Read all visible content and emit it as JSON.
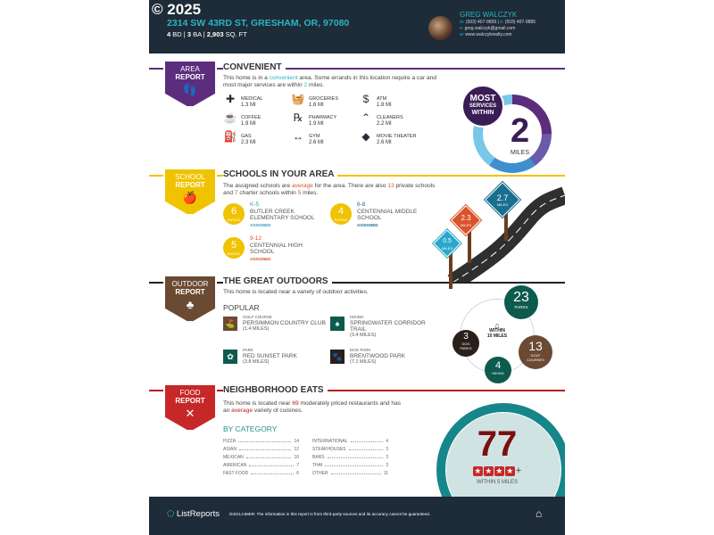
{
  "header": {
    "copyright": "© 2025",
    "address": "2314 SW 43RD ST, GRESHAM, OR, 97080",
    "beds": "4",
    "beds_label": "BD",
    "baths": "3",
    "baths_label": "BA",
    "sqft": "2,903",
    "sqft_label": "SQ. FT",
    "agent": {
      "name": "GREG WALCZYK",
      "mobile_label": "m:",
      "mobile": "(503) 407-9859",
      "office_label": "o:",
      "office": "(503) 407-9885",
      "email_label": "e:",
      "email": "greg.walczyk@gmail.com",
      "web_label": "w:",
      "web": "www.walczykrealty.com"
    }
  },
  "area": {
    "badge_line1": "AREA",
    "badge_line2": "REPORT",
    "title": "CONVENIENT",
    "color": "#5b2d7c",
    "text_pre": "This home is in a ",
    "text_hl": "convenient",
    "text_mid": " area. Some errands in this location require a car and most major services are within ",
    "text_num": "2",
    "text_post": " miles.",
    "services": [
      {
        "label": "MEDICAL",
        "dist": "1.3 MI",
        "icon": "cross-icon"
      },
      {
        "label": "GROCERIES",
        "dist": "1.6 MI",
        "icon": "basket-icon"
      },
      {
        "label": "ATM",
        "dist": "1.8 MI",
        "icon": "dollar-icon"
      },
      {
        "label": "COFFEE",
        "dist": "1.9 MI",
        "icon": "coffee-icon"
      },
      {
        "label": "PHARMACY",
        "dist": "1.9 MI",
        "icon": "pharmacy-icon"
      },
      {
        "label": "CLEANERS",
        "dist": "2.2 MI",
        "icon": "hanger-icon"
      },
      {
        "label": "GAS",
        "dist": "2.3 MI",
        "icon": "gas-icon"
      },
      {
        "label": "GYM",
        "dist": "2.6 MI",
        "icon": "dumbbell-icon"
      },
      {
        "label": "MOVIE THEATER",
        "dist": "2.6 MI",
        "icon": "ticket-icon"
      }
    ],
    "circle": {
      "line1": "MOST",
      "line2": "SERVICES",
      "line3": "WITHIN",
      "value": "2",
      "unit": "MILES"
    }
  },
  "school": {
    "badge_line1": "SCHOOL",
    "badge_line2": "REPORT",
    "title": "SCHOOLS IN YOUR AREA",
    "color": "#f0c300",
    "text_a": "The assigned schools are ",
    "text_hl": "average",
    "text_b": " for the area. There are also ",
    "private": "13",
    "text_c": " private schools and ",
    "charter": "7",
    "text_d": " charter schools within ",
    "miles": "5",
    "text_e": " miles.",
    "rating_label": "RATING",
    "schools": [
      {
        "rating": "6",
        "level": "K-5",
        "name": "BUTLER CREEK ELEMENTARY SCHOOL",
        "status": "ASSIGNED",
        "color": "#2a9fb5"
      },
      {
        "rating": "4",
        "level": "6-8",
        "name": "CENTENNIAL MIDDLE SCHOOL",
        "status": "ASSIGNED",
        "color": "#1a6e8e"
      },
      {
        "rating": "5",
        "level": "9-12",
        "name": "CENTENNIAL HIGH SCHOOL",
        "status": "ASSIGNED",
        "color": "#d9532c"
      }
    ],
    "signs": [
      {
        "value": "0.5",
        "unit": "MILES",
        "color": "#2aa7c9"
      },
      {
        "value": "2.3",
        "unit": "MILES",
        "color": "#d9532c"
      },
      {
        "value": "2.7",
        "unit": "MILES",
        "color": "#1a6e8e"
      }
    ]
  },
  "outdoor": {
    "badge_line1": "OUTDOOR",
    "badge_line2": "REPORT",
    "title": "THE GREAT OUTDOORS",
    "color": "#6b4a33",
    "text": "This home is located near a variety of outdoor activities.",
    "popular": "POPULAR",
    "items": [
      {
        "kind": "GOLF COURSE",
        "name": "PERSIMMON COUNTRY CLUB",
        "dist": "(1.4 MILES)",
        "color": "#6b4a33"
      },
      {
        "kind": "HIKING",
        "name": "SPRINGWATER CORRIDOR TRAIL",
        "dist": "(3.4 MILES)",
        "color": "#0d5a4f"
      },
      {
        "kind": "PARK",
        "name": "RED SUNSET PARK",
        "dist": "(3.8 MILES)",
        "color": "#0d5a4f"
      },
      {
        "kind": "DOG PARK",
        "name": "BRENTWOOD PARK",
        "dist": "(7.1 MILES)",
        "color": "#2a1f1a"
      }
    ],
    "center1": "WITHIN",
    "center2": "10 MILES",
    "counts": {
      "parks": "23",
      "parks_label": "PARKS",
      "golf": "13",
      "golf_label": "GOLF COURSES",
      "hiking": "4",
      "hiking_label": "HIKING",
      "dog": "3",
      "dog_label": "DOG PARKS"
    }
  },
  "food": {
    "badge_line1": "FOOD",
    "badge_line2": "REPORT",
    "title": "NEIGHBORHOOD EATS",
    "color": "#b71c1c",
    "text_a": "This home is located near ",
    "count": "69",
    "text_b": " moderately priced restaurants and has an ",
    "variety": "average",
    "text_c": " variety of cuisines.",
    "by_category": "BY CATEGORY",
    "categories": [
      {
        "name": "PIZZA",
        "n": "14"
      },
      {
        "name": "ASIAN",
        "n": "12"
      },
      {
        "name": "MEXICAN",
        "n": "10"
      },
      {
        "name": "AMERICAN",
        "n": "7"
      },
      {
        "name": "FAST FOOD",
        "n": "6"
      },
      {
        "name": "INTERNATIONAL",
        "n": "4"
      },
      {
        "name": "STEAKHOUSES",
        "n": "3"
      },
      {
        "name": "BARS",
        "n": "3"
      },
      {
        "name": "THAI",
        "n": "3"
      },
      {
        "name": "OTHER",
        "n": "11"
      }
    ],
    "circle": {
      "value": "77",
      "stars": 4,
      "plus": "+",
      "caption": "WITHIN 5 MILES"
    }
  },
  "footer": {
    "brand": "ListReports",
    "disclaimer_label": "DISCLAIMER:",
    "disclaimer": " The information in this report is from third-party sources and its accuracy cannot be guaranteed."
  }
}
